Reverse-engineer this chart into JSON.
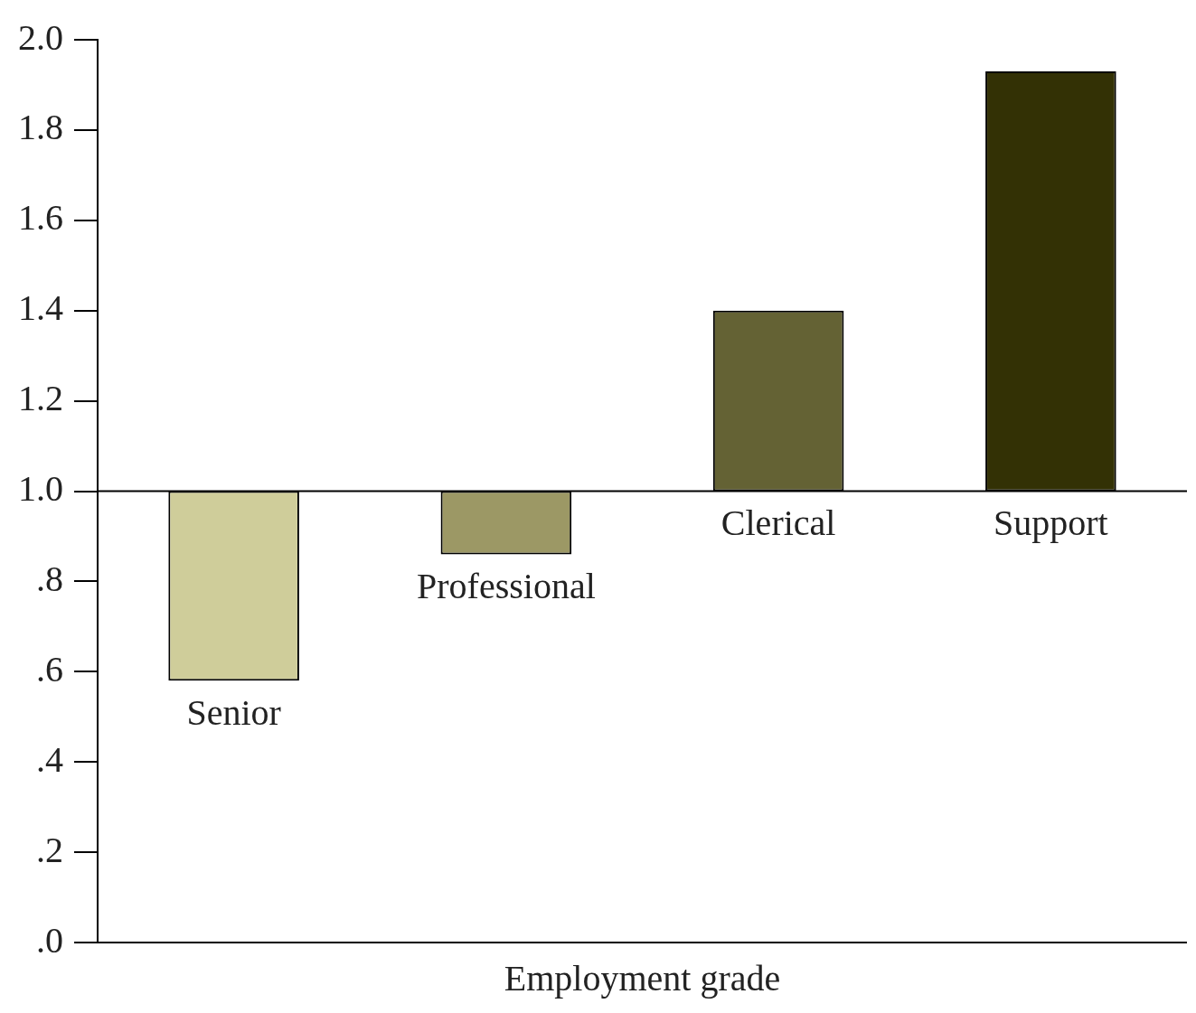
{
  "chart_data": {
    "type": "bar",
    "xlabel": "Employment grade",
    "categories": [
      "Senior",
      "Professional",
      "Clerical",
      "Support"
    ],
    "base": [
      1,
      1,
      1,
      1
    ],
    "values": [
      -0.42,
      -0.14,
      0.4,
      0.93
    ],
    "colors": [
      "#cfcd9a",
      "#9c9865",
      "#646234",
      "#333105"
    ],
    "ylim": [
      0,
      2
    ],
    "yticks": [
      {
        "value": 0,
        "label": ".0"
      },
      {
        "value": 0.2,
        "label": ".2"
      },
      {
        "value": 0.4,
        "label": ".4"
      },
      {
        "value": 0.6,
        "label": ".6"
      },
      {
        "value": 0.8,
        "label": ".8"
      },
      {
        "value": 1,
        "label": "1.0"
      },
      {
        "value": 1.2,
        "label": "1.2"
      },
      {
        "value": 1.4,
        "label": "1.4"
      },
      {
        "value": 1.6,
        "label": "1.6"
      },
      {
        "value": 1.8,
        "label": "1.8"
      },
      {
        "value": 2,
        "label": "2.0"
      }
    ],
    "grid": false,
    "tick_labels": "y"
  }
}
